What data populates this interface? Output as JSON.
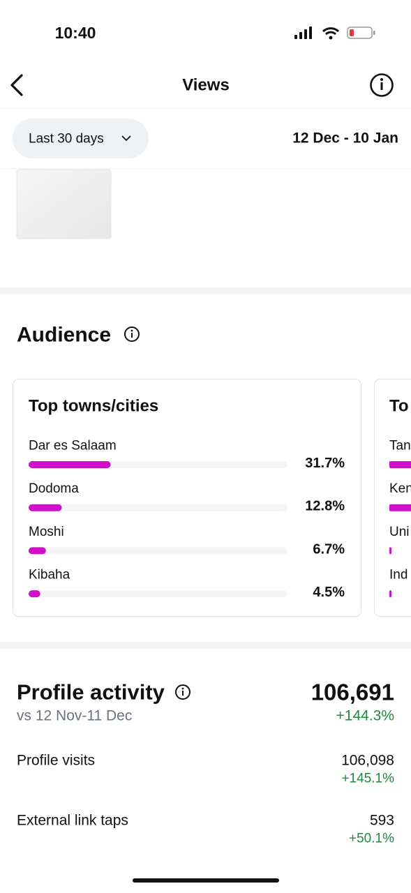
{
  "status_bar": {
    "time": "10:40"
  },
  "header": {
    "title": "Views"
  },
  "filter": {
    "range": "Last 30 days",
    "dates": "12 Dec - 10 Jan"
  },
  "audience": {
    "title": "Audience",
    "cards": [
      {
        "title": "Top towns/cities",
        "color": "#d20fc8",
        "rows": [
          {
            "name": "Dar es Salaam",
            "value": 31.7,
            "value_label": "31.7%"
          },
          {
            "name": "Dodoma",
            "value": 12.8,
            "value_label": "12.8%"
          },
          {
            "name": "Moshi",
            "value": 6.7,
            "value_label": "6.7%"
          },
          {
            "name": "Kibaha",
            "value": 4.5,
            "value_label": "4.5%"
          }
        ]
      },
      {
        "title": "To",
        "rows": [
          {
            "name": "Tan"
          },
          {
            "name": "Ken"
          },
          {
            "name": "Uni"
          },
          {
            "name": "Ind"
          }
        ]
      }
    ]
  },
  "profile_activity": {
    "title": "Profile activity",
    "total": "106,691",
    "change": "+144.3%",
    "comparison": "vs 12 Nov-11 Dec",
    "rows": [
      {
        "label": "Profile visits",
        "value": "106,098",
        "change": "+145.1%"
      },
      {
        "label": "External link taps",
        "value": "593",
        "change": "+50.1%"
      }
    ]
  }
}
